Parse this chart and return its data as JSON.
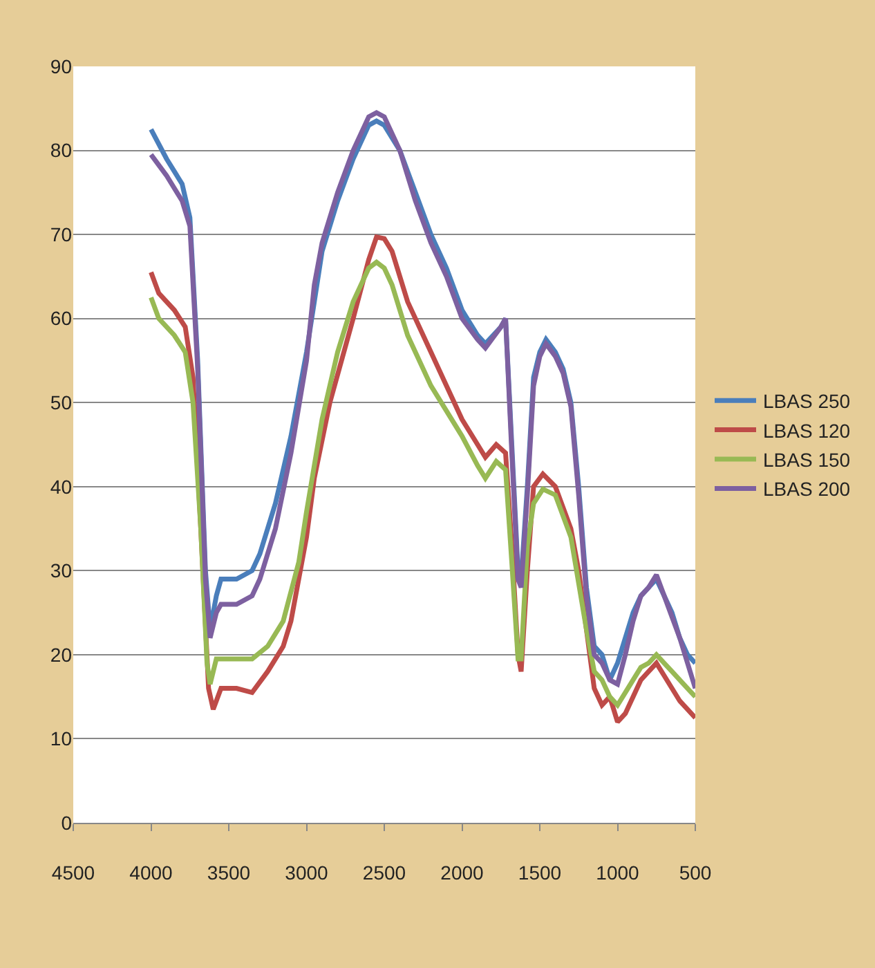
{
  "chart_data": {
    "type": "line",
    "xlim": [
      4500,
      500
    ],
    "xticks": [
      4500,
      4000,
      3500,
      3000,
      2500,
      2000,
      1500,
      1000,
      500
    ],
    "ylim": [
      0,
      90
    ],
    "yticks": [
      0,
      10,
      20,
      30,
      40,
      50,
      60,
      70,
      80,
      90
    ],
    "grid": "y",
    "legend": "right",
    "marker": "none",
    "line_style": "solid",
    "series": [
      {
        "name": "LBAS 250",
        "color": "#4a7ebb",
        "x": [
          4000,
          3900,
          3800,
          3750,
          3700,
          3650,
          3620,
          3580,
          3550,
          3450,
          3350,
          3300,
          3200,
          3100,
          3000,
          2950,
          2900,
          2800,
          2700,
          2600,
          2550,
          2500,
          2400,
          2300,
          2200,
          2100,
          2000,
          1900,
          1850,
          1750,
          1720,
          1680,
          1640,
          1620,
          1580,
          1540,
          1500,
          1460,
          1400,
          1350,
          1300,
          1250,
          1200,
          1150,
          1100,
          1050,
          1000,
          950,
          900,
          850,
          800,
          750,
          700,
          650,
          600,
          550,
          500
        ],
        "values": [
          82.5,
          79,
          76,
          72,
          55,
          30,
          23,
          27,
          29,
          29,
          30,
          32,
          38,
          46,
          56,
          62,
          68,
          74,
          79,
          83,
          83.5,
          83,
          80,
          75,
          70,
          66,
          61,
          58,
          57,
          59,
          60,
          45,
          30,
          29,
          40,
          53,
          56,
          57.5,
          56,
          54,
          50,
          40,
          28,
          21,
          20,
          17,
          19,
          22,
          25,
          27,
          28,
          29,
          27,
          25,
          22,
          20,
          19
        ]
      },
      {
        "name": "LBAS 120",
        "color": "#be4b48",
        "x": [
          4000,
          3950,
          3850,
          3780,
          3730,
          3680,
          3630,
          3600,
          3550,
          3450,
          3350,
          3250,
          3150,
          3100,
          3000,
          2950,
          2850,
          2700,
          2600,
          2550,
          2500,
          2450,
          2350,
          2200,
          2100,
          2000,
          1900,
          1850,
          1780,
          1720,
          1680,
          1640,
          1620,
          1580,
          1540,
          1480,
          1400,
          1300,
          1250,
          1200,
          1150,
          1100,
          1050,
          1000,
          950,
          900,
          850,
          800,
          750,
          700,
          650,
          600,
          550,
          500
        ],
        "values": [
          65.5,
          63,
          61,
          59,
          53,
          35,
          16,
          13.5,
          16,
          16,
          15.5,
          18,
          21,
          24,
          34,
          41,
          50,
          60,
          67,
          69.7,
          69.5,
          68,
          62,
          56,
          52,
          48,
          45,
          43.5,
          45,
          44,
          33,
          20,
          18,
          30,
          40,
          41.5,
          40,
          35,
          30,
          23,
          16,
          14,
          15,
          12,
          13,
          15,
          17,
          18,
          19,
          17.5,
          16,
          14.5,
          13.5,
          12.5
        ]
      },
      {
        "name": "LBAS 150",
        "color": "#98b954",
        "x": [
          4000,
          3950,
          3850,
          3780,
          3730,
          3680,
          3640,
          3620,
          3580,
          3450,
          3350,
          3250,
          3150,
          3050,
          3000,
          2900,
          2800,
          2700,
          2600,
          2550,
          2500,
          2450,
          2350,
          2200,
          2100,
          2000,
          1900,
          1850,
          1780,
          1720,
          1680,
          1640,
          1620,
          1580,
          1540,
          1480,
          1400,
          1300,
          1200,
          1150,
          1100,
          1050,
          1000,
          950,
          900,
          850,
          800,
          750,
          700,
          650,
          600,
          550,
          500
        ],
        "values": [
          62.5,
          60,
          58,
          56,
          50,
          35,
          19,
          16.5,
          19.5,
          19.5,
          19.5,
          21,
          24,
          31,
          37,
          48,
          56,
          62,
          66,
          66.7,
          66,
          64,
          58,
          52,
          49,
          46,
          42.5,
          41,
          43,
          42,
          31,
          19.5,
          19.5,
          33,
          38,
          39.7,
          39,
          34,
          23,
          18,
          17,
          15,
          14,
          15.5,
          17,
          18.5,
          19,
          20,
          19,
          18,
          17,
          16,
          15
        ]
      },
      {
        "name": "LBAS 200",
        "color": "#7d60a0",
        "x": [
          4000,
          3900,
          3800,
          3750,
          3700,
          3650,
          3620,
          3580,
          3550,
          3450,
          3350,
          3300,
          3200,
          3100,
          3000,
          2950,
          2900,
          2800,
          2700,
          2600,
          2550,
          2500,
          2400,
          2300,
          2200,
          2100,
          2000,
          1900,
          1850,
          1750,
          1720,
          1680,
          1640,
          1620,
          1580,
          1540,
          1500,
          1460,
          1400,
          1350,
          1300,
          1250,
          1200,
          1150,
          1100,
          1050,
          1000,
          950,
          900,
          850,
          800,
          750,
          700,
          650,
          600,
          550,
          500
        ],
        "values": [
          79.5,
          77,
          74,
          71,
          54,
          29,
          22,
          25,
          26,
          26,
          27,
          29,
          35,
          44,
          55,
          64,
          69,
          75,
          80,
          84,
          84.5,
          84,
          80,
          74,
          69,
          65,
          60,
          57.5,
          56.5,
          59,
          60,
          44,
          29,
          28,
          39,
          52,
          55.5,
          57,
          55.5,
          53.5,
          49.5,
          39,
          27,
          20,
          19,
          17,
          16.5,
          20,
          24,
          27,
          28,
          29.5,
          27,
          24.5,
          22,
          19,
          16
        ]
      }
    ]
  }
}
